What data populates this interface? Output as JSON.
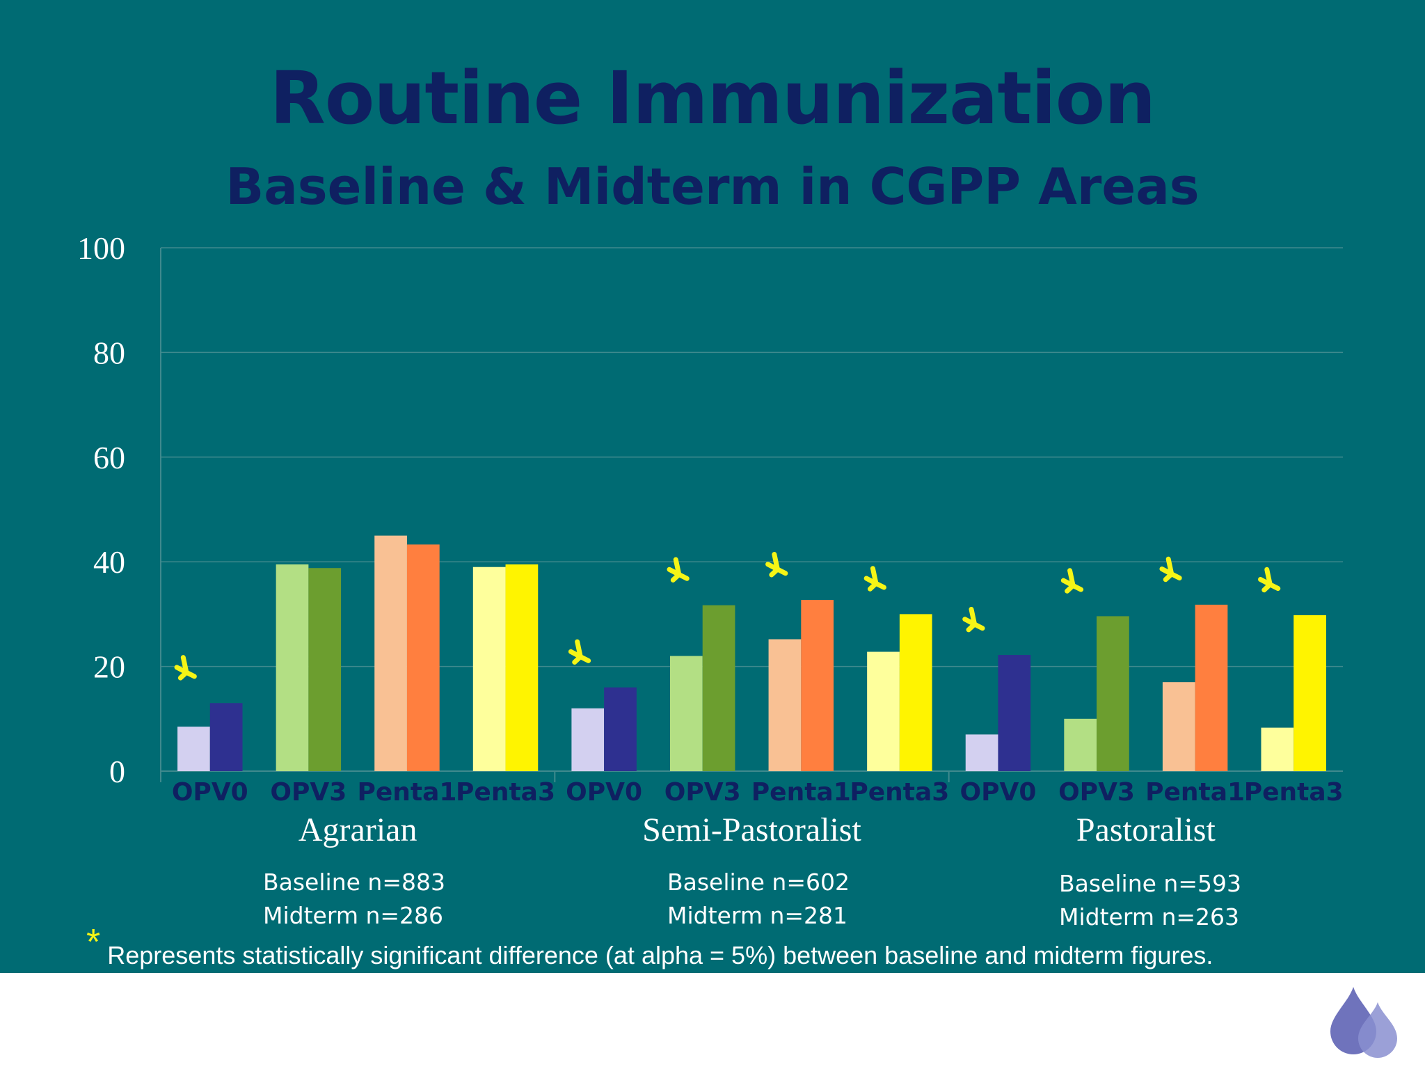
{
  "title": "Routine Immunization",
  "subtitle": "Baseline & Midterm in CGPP Areas",
  "footnote": {
    "symbol": "*",
    "text": "Represents statistically significant difference (at alpha = 5%) between baseline and midterm figures."
  },
  "sample_sizes": [
    {
      "group": "Agrarian",
      "baseline": "Baseline n=883",
      "midterm": "Midterm n=286"
    },
    {
      "group": "Semi-Pastoralist",
      "baseline": "Baseline n=602",
      "midterm": "Midterm n=281"
    },
    {
      "group": "Pastoralist",
      "baseline": "Baseline n=593",
      "midterm": "Midterm n=263"
    }
  ],
  "colors": {
    "background": "#006b73",
    "title": "#0f2061",
    "significance_marker": "#f5f516",
    "vaccines": {
      "OPV0": {
        "baseline": "#d3d0f0",
        "midterm": "#2e3090"
      },
      "OPV3": {
        "baseline": "#b3df84",
        "midterm": "#6c9e2f"
      },
      "Penta1": {
        "baseline": "#f9c194",
        "midterm": "#ff7f3f"
      },
      "Penta3": {
        "baseline": "#feff9c",
        "midterm": "#fff400"
      }
    }
  },
  "chart_data": {
    "type": "bar",
    "ylim": [
      0,
      100
    ],
    "yticks": [
      0,
      20,
      40,
      60,
      80,
      100
    ],
    "grid": true,
    "groups": [
      {
        "name": "Agrarian",
        "categories": [
          "OPV0",
          "OPV3",
          "Penta1",
          "Penta3"
        ],
        "baseline": [
          8.5,
          39.5,
          45.0,
          39.0
        ],
        "midterm": [
          13.0,
          38.8,
          43.3,
          39.5
        ],
        "significant": [
          true,
          false,
          false,
          false
        ]
      },
      {
        "name": "Semi-Pastoralist",
        "categories": [
          "OPV0",
          "OPV3",
          "Penta1",
          "Penta3"
        ],
        "baseline": [
          12.0,
          22.0,
          25.2,
          22.8
        ],
        "midterm": [
          16.0,
          31.7,
          32.7,
          30.0
        ],
        "significant": [
          true,
          true,
          true,
          true
        ]
      },
      {
        "name": "Pastoralist",
        "categories": [
          "OPV0",
          "OPV3",
          "Penta1",
          "Penta3"
        ],
        "baseline": [
          7.0,
          10.0,
          17.0,
          8.3
        ],
        "midterm": [
          22.2,
          29.6,
          31.8,
          29.8
        ],
        "significant": [
          true,
          true,
          true,
          true
        ]
      }
    ]
  }
}
